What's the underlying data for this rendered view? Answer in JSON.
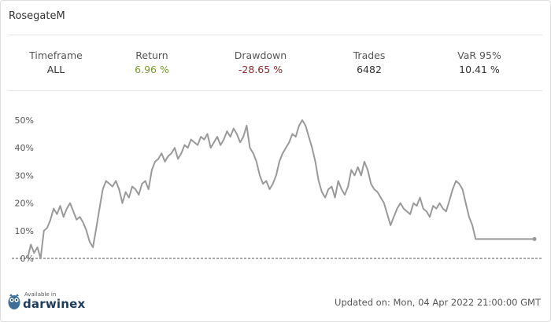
{
  "title": "RosegateM",
  "stats": [
    {
      "label": "Timeframe",
      "value": "ALL",
      "color": "#333333"
    },
    {
      "label": "Return",
      "value": "6.96 %",
      "color": "#7a9a2a"
    },
    {
      "label": "Drawdown",
      "value": "-28.65 %",
      "color": "#8b2a2a"
    },
    {
      "label": "Trades",
      "value": "6482",
      "color": "#333333"
    },
    {
      "label": "VaR 95%",
      "value": "10.41 %",
      "color": "#333333"
    }
  ],
  "brand": {
    "available": "Available in",
    "name": "darwinex"
  },
  "updated": "Updated on: Mon, 04 Apr 2022 21:00:00 GMT",
  "chart_data": {
    "type": "line",
    "ylim": [
      0,
      50
    ],
    "yticks": [
      "0%",
      "10%",
      "20%",
      "30%",
      "40%",
      "50%"
    ],
    "xlabel": "",
    "ylabel": "",
    "grid": false,
    "line_color": "#999999",
    "baseline_value": 0,
    "series": [
      {
        "values": [
          0,
          5,
          2,
          4,
          0,
          10,
          11,
          14,
          18,
          16,
          19,
          15,
          18,
          20,
          17,
          14,
          15,
          13,
          10,
          6,
          4,
          11,
          18,
          25,
          28,
          27,
          26,
          28,
          25,
          20,
          24,
          22,
          26,
          25,
          23,
          27,
          28,
          25,
          32,
          35,
          36,
          38,
          35,
          37,
          38,
          40,
          36,
          38,
          41,
          40,
          43,
          42,
          41,
          44,
          43,
          45,
          40,
          42,
          44,
          41,
          43,
          46,
          44,
          47,
          45,
          42,
          44,
          48,
          40,
          38,
          35,
          30,
          27,
          28,
          25,
          27,
          30,
          35,
          38,
          40,
          42,
          45,
          44,
          48,
          50,
          48,
          44,
          40,
          35,
          28,
          24,
          22,
          25,
          26,
          22,
          28,
          25,
          23,
          26,
          32,
          30,
          33,
          30,
          35,
          32,
          27,
          25,
          24,
          22,
          20,
          16,
          12,
          15,
          18,
          20,
          18,
          17,
          16,
          20,
          19,
          22,
          18,
          17,
          15,
          19,
          18,
          20,
          18,
          17,
          21,
          25,
          28,
          27,
          25,
          20,
          15,
          12,
          7,
          7,
          7,
          7,
          7,
          7,
          7,
          7,
          7,
          7,
          7,
          7,
          7,
          7,
          7,
          7,
          7,
          7,
          7
        ]
      }
    ]
  }
}
